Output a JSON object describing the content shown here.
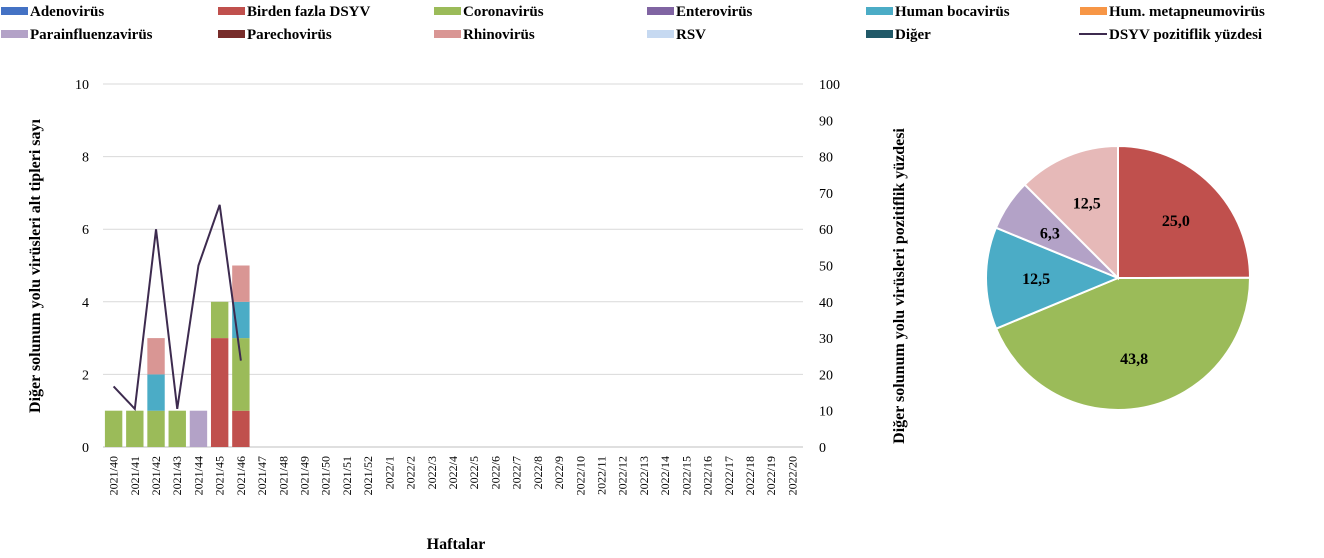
{
  "legend": [
    {
      "name": "Adenovirüs",
      "color": "#4472c4",
      "marker": "box"
    },
    {
      "name": "Birden fazla DSYV",
      "color": "#c0504d",
      "marker": "box"
    },
    {
      "name": "Coronavirüs",
      "color": "#9bbb59",
      "marker": "box"
    },
    {
      "name": "Enterovirüs",
      "color": "#8064a2",
      "marker": "box"
    },
    {
      "name": "Human bocavirüs",
      "color": "#4bacc6",
      "marker": "box"
    },
    {
      "name": "Hum. metapneumovirüs",
      "color": "#f79646",
      "marker": "box"
    },
    {
      "name": "Parainfluenzavirüs",
      "color": "#b3a2c7",
      "marker": "box"
    },
    {
      "name": "Parechovirüs",
      "color": "#772c2a",
      "marker": "box"
    },
    {
      "name": "Rhinovirüs",
      "color": "#d99694",
      "marker": "box"
    },
    {
      "name": "RSV",
      "color": "#c6d9f1",
      "marker": "box"
    },
    {
      "name": "Diğer",
      "color": "#215968",
      "marker": "box"
    },
    {
      "name": "DSYV pozitiflik yüzdesi",
      "color": "#3d2b4f",
      "marker": "line"
    }
  ],
  "chart_data": [
    {
      "type": "bar",
      "stacked": true,
      "xlabel": "Haftalar",
      "ylabel": "Diğer solunum yolu virüsleri alt tipleri sayı",
      "y2label": "Diğer solunum yolu virüsleri pozitiflik yüzdesi",
      "ylim": [
        0,
        10
      ],
      "yticks": [
        0,
        2,
        4,
        6,
        8,
        10
      ],
      "y2lim": [
        0,
        100
      ],
      "y2ticks": [
        0,
        10,
        20,
        30,
        40,
        50,
        60,
        70,
        80,
        90,
        100
      ],
      "grid": true,
      "legend_position": "top",
      "categories": [
        "2021/40",
        "2021/41",
        "2021/42",
        "2021/43",
        "2021/44",
        "2021/45",
        "2021/46",
        "2021/47",
        "2021/48",
        "2021/49",
        "2021/50",
        "2021/51",
        "2021/52",
        "2022/1",
        "2022/2",
        "2022/3",
        "2022/4",
        "2022/5",
        "2022/6",
        "2022/7",
        "2022/8",
        "2022/9",
        "2022/10",
        "2022/11",
        "2022/12",
        "2022/13",
        "2022/14",
        "2022/15",
        "2022/16",
        "2022/17",
        "2022/18",
        "2022/19",
        "2022/20"
      ],
      "series": [
        {
          "name": "Birden fazla DSYV",
          "color": "#c0504d",
          "values": [
            0,
            0,
            0,
            0,
            0,
            3,
            1,
            0,
            0,
            0,
            0,
            0,
            0,
            0,
            0,
            0,
            0,
            0,
            0,
            0,
            0,
            0,
            0,
            0,
            0,
            0,
            0,
            0,
            0,
            0,
            0,
            0,
            0
          ]
        },
        {
          "name": "Coronavirüs",
          "color": "#9bbb59",
          "values": [
            1,
            1,
            1,
            1,
            0,
            1,
            2,
            0,
            0,
            0,
            0,
            0,
            0,
            0,
            0,
            0,
            0,
            0,
            0,
            0,
            0,
            0,
            0,
            0,
            0,
            0,
            0,
            0,
            0,
            0,
            0,
            0,
            0
          ]
        },
        {
          "name": "Human bocavirüs",
          "color": "#4bacc6",
          "values": [
            0,
            0,
            1,
            0,
            0,
            0,
            1,
            0,
            0,
            0,
            0,
            0,
            0,
            0,
            0,
            0,
            0,
            0,
            0,
            0,
            0,
            0,
            0,
            0,
            0,
            0,
            0,
            0,
            0,
            0,
            0,
            0,
            0
          ]
        },
        {
          "name": "Parainfluenzavirüs",
          "color": "#b3a2c7",
          "values": [
            0,
            0,
            0,
            0,
            1,
            0,
            0,
            0,
            0,
            0,
            0,
            0,
            0,
            0,
            0,
            0,
            0,
            0,
            0,
            0,
            0,
            0,
            0,
            0,
            0,
            0,
            0,
            0,
            0,
            0,
            0,
            0,
            0
          ]
        },
        {
          "name": "Rhinovirüs",
          "color": "#d99694",
          "values": [
            0,
            0,
            1,
            0,
            0,
            0,
            1,
            0,
            0,
            0,
            0,
            0,
            0,
            0,
            0,
            0,
            0,
            0,
            0,
            0,
            0,
            0,
            0,
            0,
            0,
            0,
            0,
            0,
            0,
            0,
            0,
            0,
            0
          ]
        }
      ],
      "line": {
        "name": "DSYV pozitiflik yüzdesi",
        "color": "#3d2b4f",
        "axis": "right",
        "values": [
          16.7,
          10.5,
          60.0,
          10.5,
          50.0,
          66.7,
          23.8
        ]
      }
    },
    {
      "type": "pie",
      "slices": [
        {
          "name": "Birden fazla DSYV",
          "value": 25.0,
          "label": "25,0",
          "color": "#c0504d"
        },
        {
          "name": "Coronavirüs",
          "value": 43.8,
          "label": "43,8",
          "color": "#9bbb59"
        },
        {
          "name": "Human bocavirüs",
          "value": 12.5,
          "label": "12,5",
          "color": "#4bacc6"
        },
        {
          "name": "Parainfluenzavirüs",
          "value": 6.3,
          "label": "6,3",
          "color": "#b3a2c7"
        },
        {
          "name": "Rhinovirüs",
          "value": 12.5,
          "label": "12,5",
          "color": "#e6b9b8"
        }
      ]
    }
  ]
}
